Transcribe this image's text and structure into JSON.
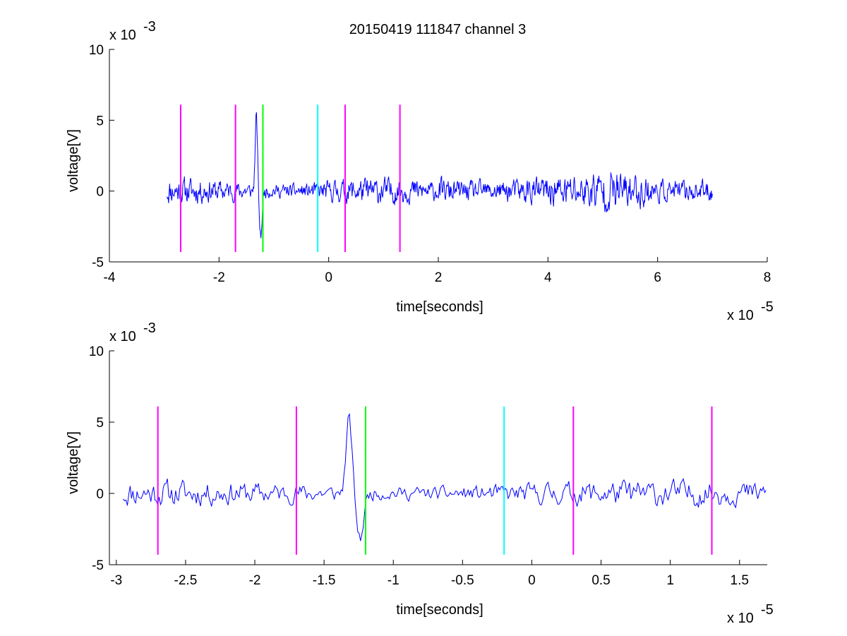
{
  "figure": {
    "title": "20150419 111847 channel 3"
  },
  "chart_data": [
    {
      "type": "line",
      "xlabel": "time[seconds]",
      "ylabel": "voltage[V]",
      "x_exponent_label": "x 10",
      "x_exponent_power": "-5",
      "y_exponent_label": "x 10",
      "y_exponent_power": "-3",
      "xlim": [
        -4,
        8
      ],
      "ylim": [
        -5,
        10
      ],
      "xticks": [
        -4,
        -2,
        0,
        2,
        4,
        6,
        8
      ],
      "xtick_labels": [
        "-4",
        "-2",
        "0",
        "2",
        "4",
        "6",
        "8"
      ],
      "yticks": [
        -5,
        0,
        5,
        10
      ],
      "ytick_labels": [
        "-5",
        "0",
        "5",
        "10"
      ],
      "grid": false,
      "signal": {
        "color": "#0000ff",
        "x_start": -2.95,
        "x_end": 7.0,
        "seed": 11
      },
      "markers": [
        {
          "x": -2.7,
          "color": "#ff00ff",
          "y0": -4.3,
          "y1": 6.1
        },
        {
          "x": -1.7,
          "color": "#ff00ff",
          "y0": -4.3,
          "y1": 6.1
        },
        {
          "x": -1.2,
          "color": "#00ff00",
          "y0": -4.3,
          "y1": 6.1
        },
        {
          "x": -0.2,
          "color": "#00ffff",
          "y0": -4.3,
          "y1": 6.1
        },
        {
          "x": 0.3,
          "color": "#ff00ff",
          "y0": -4.3,
          "y1": 6.1
        },
        {
          "x": 1.3,
          "color": "#ff00ff",
          "y0": -4.3,
          "y1": 6.1
        }
      ]
    },
    {
      "type": "line",
      "xlabel": "time[seconds]",
      "ylabel": "voltage[V]",
      "x_exponent_label": "x 10",
      "x_exponent_power": "-5",
      "y_exponent_label": "x 10",
      "y_exponent_power": "-3",
      "xlim": [
        -3.05,
        1.7
      ],
      "ylim": [
        -5,
        10
      ],
      "xticks": [
        -3,
        -2.5,
        -2,
        -1.5,
        -1,
        -0.5,
        0,
        0.5,
        1,
        1.5
      ],
      "xtick_labels": [
        "-3",
        "-2.5",
        "-2",
        "-1.5",
        "-1",
        "-0.5",
        "0",
        "0.5",
        "1",
        "1.5"
      ],
      "yticks": [
        -5,
        0,
        5,
        10
      ],
      "ytick_labels": [
        "-5",
        "0",
        "5",
        "10"
      ],
      "grid": false,
      "signal": {
        "color": "#0000ff",
        "x_start": -2.95,
        "x_end": 1.7,
        "seed": 11
      },
      "markers": [
        {
          "x": -2.7,
          "color": "#ff00ff",
          "y0": -4.3,
          "y1": 6.1
        },
        {
          "x": -1.7,
          "color": "#ff00ff",
          "y0": -4.3,
          "y1": 6.1
        },
        {
          "x": -1.2,
          "color": "#00ff00",
          "y0": -4.3,
          "y1": 6.1
        },
        {
          "x": -0.2,
          "color": "#00ffff",
          "y0": -4.3,
          "y1": 6.1
        },
        {
          "x": 0.3,
          "color": "#ff00ff",
          "y0": -4.3,
          "y1": 6.1
        },
        {
          "x": 1.3,
          "color": "#ff00ff",
          "y0": -4.3,
          "y1": 6.1
        }
      ]
    }
  ]
}
